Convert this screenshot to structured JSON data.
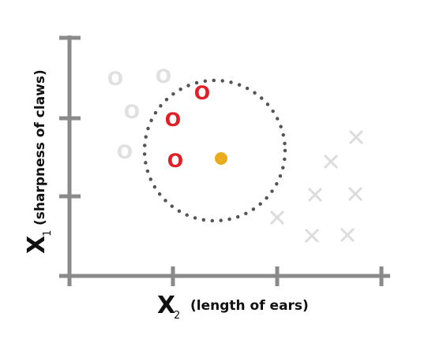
{
  "y_label": {
    "symbol": "X",
    "subscript": "1",
    "text": "(sharpness of claws)"
  },
  "x_label": {
    "symbol": "X",
    "subscript": "2",
    "text": "(length of ears)"
  },
  "neighbors": [
    "O",
    "O",
    "O"
  ],
  "other_points": [
    "O",
    "O",
    "O",
    "O"
  ]
}
